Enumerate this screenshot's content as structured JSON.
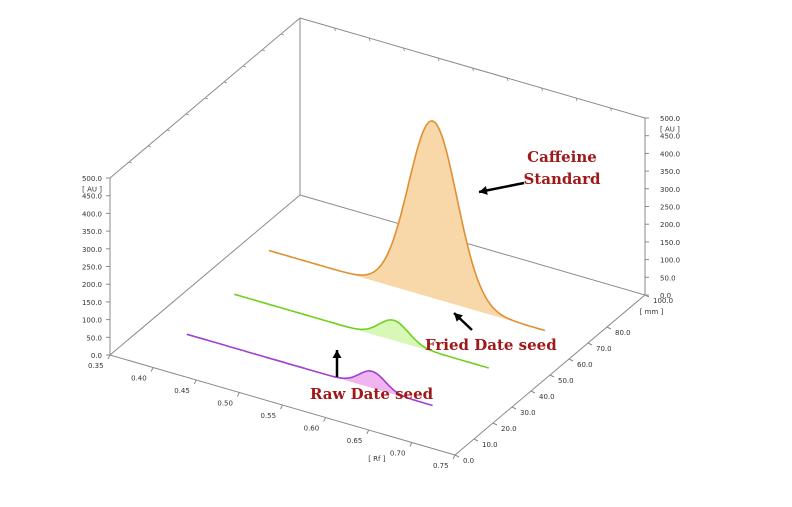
{
  "chart_data": {
    "type": "area",
    "view": "3d-densitogram",
    "x_axis": {
      "label": "[ Rf ]",
      "ticks": [
        "0.35",
        "0.40",
        "0.45",
        "0.50",
        "0.55",
        "0.60",
        "0.65",
        "0.70",
        "0.75"
      ],
      "range": [
        0.35,
        0.75
      ]
    },
    "depth_axis": {
      "label": "[ mm ]",
      "ticks": [
        "0.0",
        "10.0",
        "20.0",
        "30.0",
        "40.0",
        "50.0",
        "60.0",
        "70.0",
        "80.0",
        "100.0"
      ],
      "range": [
        0,
        100
      ]
    },
    "y_axis": {
      "label": "[ AU ]",
      "ticks": [
        "0.0",
        "50.0",
        "100.0",
        "150.0",
        "200.0",
        "250.0",
        "300.0",
        "350.0",
        "400.0",
        "450.0",
        "500.0"
      ],
      "range": [
        0,
        500
      ]
    },
    "series": [
      {
        "name": "Raw Date seed",
        "color": "#a040d0",
        "fill": "#f0b4f0",
        "peak_rf": 0.61,
        "peak_au": 47,
        "width_rf": 0.015
      },
      {
        "name": "Fried Date seed",
        "color": "#70d020",
        "fill": "#d8f8b8",
        "peak_rf": 0.58,
        "peak_au": 57,
        "width_rf": 0.017
      },
      {
        "name": "Caffeine Standard",
        "color": "#e09030",
        "fill": "#f8d8a8",
        "peak_rf": 0.57,
        "peak_au": 500,
        "width_rf": 0.028
      }
    ],
    "annotations": [
      {
        "text": "Caffeine\nStandard",
        "lines": [
          "Caffeine",
          "Standard"
        ]
      },
      {
        "text": "Fried Date seed",
        "lines": [
          "Fried Date seed"
        ]
      },
      {
        "text": "Raw Date seed",
        "lines": [
          "Raw Date seed"
        ]
      }
    ],
    "annotation_color": "#a01818",
    "grid": false
  }
}
